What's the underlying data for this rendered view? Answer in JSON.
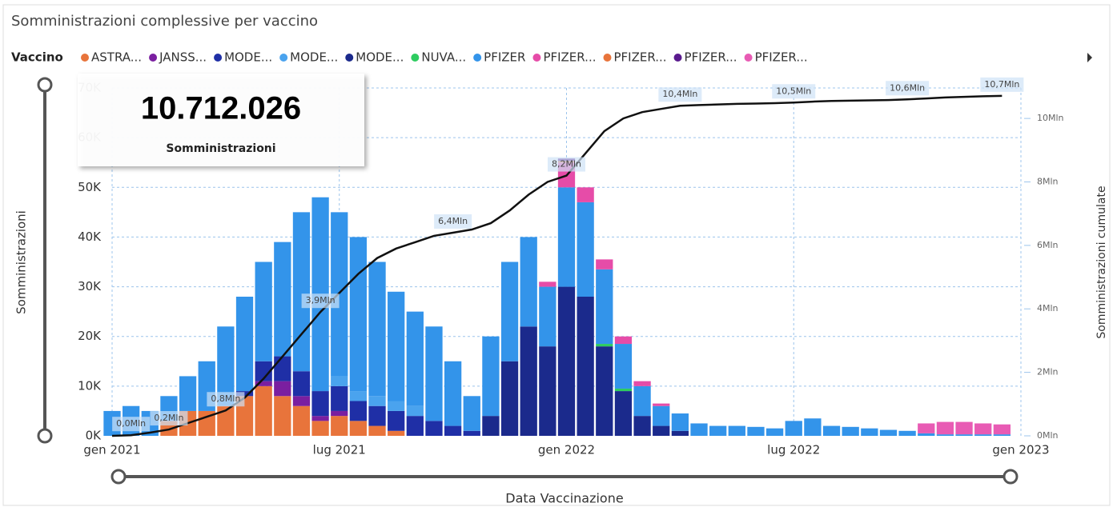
{
  "chart_data": {
    "type": "bar",
    "title": "Somministrazioni complessive per vaccino",
    "legend_title": "Vaccino",
    "card": {
      "value": "10.712.026",
      "label": "Somministrazioni"
    },
    "ylabel": "Somministrazioni",
    "y2label": "Somministrazioni cumulate",
    "xlabel": "Data Vaccinazione",
    "stacked": true,
    "grid": true,
    "x": [
      0,
      0.5,
      1,
      1.5,
      2,
      2.5,
      3,
      3.5,
      4,
      4.5,
      5,
      5.5,
      6,
      6.5,
      7,
      7.5,
      8,
      8.5,
      9,
      9.5,
      10,
      10.5,
      11,
      11.5,
      12,
      12.5,
      13,
      13.5,
      14,
      14.5,
      15,
      15.5,
      16,
      16.5,
      17,
      17.5,
      18,
      18.5,
      19,
      19.5,
      20,
      20.5,
      21,
      21.5,
      22,
      22.5,
      23,
      23.5
    ],
    "xlim": [
      0,
      24
    ],
    "xticks": [
      {
        "value": 0,
        "label": "gen 2021"
      },
      {
        "value": 6,
        "label": "lug 2021"
      },
      {
        "value": 12,
        "label": "gen 2022"
      },
      {
        "value": 18,
        "label": "lug 2022"
      },
      {
        "value": 24,
        "label": "gen 2023"
      }
    ],
    "ylim": [
      0,
      70000
    ],
    "yticks": [
      {
        "value": 0,
        "label": "0K"
      },
      {
        "value": 10000,
        "label": "10K"
      },
      {
        "value": 20000,
        "label": "20K"
      },
      {
        "value": 30000,
        "label": "30K"
      },
      {
        "value": 40000,
        "label": "40K"
      },
      {
        "value": 50000,
        "label": "50K"
      },
      {
        "value": 60000,
        "label": "60K"
      },
      {
        "value": 70000,
        "label": "70K"
      }
    ],
    "y2lim": [
      0,
      10960000
    ],
    "y2ticks": [
      {
        "value": 0,
        "label": "0Mln"
      },
      {
        "value": 2000000,
        "label": "2Mln"
      },
      {
        "value": 4000000,
        "label": "4Mln"
      },
      {
        "value": 6000000,
        "label": "6Mln"
      },
      {
        "value": 8000000,
        "label": "8Mln"
      },
      {
        "value": 10000000,
        "label": "10Mln"
      }
    ],
    "series": [
      {
        "name": "ASTRA...",
        "color": "#e8743b",
        "values": [
          0,
          0,
          0,
          3000,
          5000,
          5000,
          6000,
          8000,
          10000,
          8000,
          6000,
          3000,
          4000,
          3000,
          2000,
          1000,
          0,
          0,
          0,
          0,
          0,
          0,
          0,
          0,
          0,
          0,
          0,
          0,
          0,
          0,
          0,
          0,
          0,
          0,
          0,
          0,
          0,
          0,
          0,
          0,
          0,
          0,
          0,
          0,
          0,
          0,
          0,
          0
        ]
      },
      {
        "name": "JANSS...",
        "color": "#7a1fa0",
        "values": [
          0,
          0,
          0,
          0,
          0,
          0,
          0,
          0,
          1000,
          3000,
          2000,
          1000,
          1000,
          0,
          0,
          0,
          0,
          0,
          0,
          0,
          0,
          0,
          0,
          0,
          0,
          0,
          0,
          0,
          0,
          0,
          0,
          0,
          0,
          0,
          0,
          0,
          0,
          0,
          0,
          0,
          0,
          0,
          0,
          0,
          0,
          0,
          0,
          0
        ]
      },
      {
        "name": "MODE...",
        "color": "#1f2fa6",
        "values": [
          0,
          0,
          0,
          0,
          0,
          0,
          0,
          1000,
          4000,
          5000,
          5000,
          5000,
          5000,
          4000,
          4000,
          4000,
          4000,
          3000,
          2000,
          1000,
          0,
          0,
          0,
          0,
          0,
          0,
          0,
          0,
          0,
          0,
          0,
          0,
          0,
          0,
          0,
          0,
          0,
          0,
          0,
          0,
          0,
          0,
          0,
          0,
          0,
          0,
          0,
          0
        ]
      },
      {
        "name": "MODE...",
        "color": "#4aa3ee",
        "values": [
          0,
          0,
          0,
          0,
          0,
          0,
          0,
          0,
          0,
          0,
          0,
          0,
          2000,
          2000,
          2000,
          2000,
          2000,
          0,
          0,
          0,
          0,
          0,
          0,
          0,
          0,
          0,
          0,
          0,
          0,
          0,
          0,
          0,
          0,
          0,
          0,
          0,
          0,
          0,
          0,
          0,
          0,
          0,
          0,
          0,
          0,
          0,
          0,
          0
        ]
      },
      {
        "name": "MODE...",
        "color": "#1b2a8c",
        "values": [
          0,
          0,
          0,
          0,
          0,
          0,
          0,
          0,
          0,
          0,
          0,
          0,
          0,
          0,
          0,
          0,
          0,
          0,
          0,
          0,
          4000,
          15000,
          22000,
          18000,
          30000,
          28000,
          18000,
          9000,
          4000,
          2000,
          1000,
          0,
          0,
          0,
          0,
          0,
          0,
          0,
          0,
          0,
          0,
          0,
          0,
          0,
          0,
          0,
          0,
          0
        ]
      },
      {
        "name": "NUVA...",
        "color": "#2ecc60",
        "values": [
          0,
          0,
          0,
          0,
          0,
          0,
          0,
          0,
          0,
          0,
          0,
          0,
          0,
          0,
          0,
          0,
          0,
          0,
          0,
          0,
          0,
          0,
          0,
          0,
          0,
          0,
          500,
          500,
          0,
          0,
          0,
          0,
          0,
          0,
          0,
          0,
          0,
          0,
          0,
          0,
          0,
          0,
          0,
          0,
          0,
          0,
          0,
          0
        ]
      },
      {
        "name": "PFIZER",
        "color": "#3394ea",
        "values": [
          5000,
          6000,
          5000,
          5000,
          7000,
          10000,
          16000,
          19000,
          20000,
          23000,
          32000,
          39000,
          33000,
          31000,
          27000,
          22000,
          19000,
          19000,
          13000,
          7000,
          16000,
          20000,
          18000,
          12000,
          20000,
          19000,
          15000,
          9000,
          6000,
          4000,
          3500,
          2500,
          2000,
          2000,
          1800,
          1500,
          3000,
          3500,
          2000,
          1800,
          1500,
          1200,
          1000,
          500,
          300,
          300,
          300,
          300
        ]
      },
      {
        "name": "PFIZER...",
        "color": "#e64ca8",
        "values": [
          0,
          0,
          0,
          0,
          0,
          0,
          0,
          0,
          0,
          0,
          0,
          0,
          0,
          0,
          0,
          0,
          0,
          0,
          0,
          0,
          0,
          0,
          0,
          1000,
          5000,
          3000,
          2000,
          1500,
          1000,
          500,
          0,
          0,
          0,
          0,
          0,
          0,
          0,
          0,
          0,
          0,
          0,
          0,
          0,
          0,
          0,
          0,
          0,
          0
        ]
      },
      {
        "name": "PFIZER...",
        "color": "#e8743b",
        "values": [
          0,
          0,
          0,
          0,
          0,
          0,
          0,
          0,
          0,
          0,
          0,
          0,
          0,
          0,
          0,
          0,
          0,
          0,
          0,
          0,
          0,
          0,
          0,
          0,
          300,
          0,
          0,
          0,
          0,
          0,
          0,
          0,
          0,
          0,
          0,
          0,
          0,
          0,
          0,
          0,
          0,
          0,
          0,
          0,
          0,
          0,
          0,
          0
        ]
      },
      {
        "name": "PFIZER...",
        "color": "#5a1a8e",
        "values": [
          0,
          0,
          0,
          0,
          0,
          0,
          0,
          0,
          0,
          0,
          0,
          0,
          0,
          0,
          0,
          0,
          0,
          0,
          0,
          0,
          0,
          0,
          0,
          0,
          500,
          0,
          0,
          0,
          0,
          0,
          0,
          0,
          0,
          0,
          0,
          0,
          0,
          0,
          0,
          0,
          0,
          0,
          0,
          0,
          0,
          0,
          0,
          0
        ]
      },
      {
        "name": "PFIZER...",
        "color": "#e85bb4",
        "values": [
          0,
          0,
          0,
          0,
          0,
          0,
          0,
          0,
          0,
          0,
          0,
          0,
          0,
          0,
          0,
          0,
          0,
          0,
          0,
          0,
          0,
          0,
          0,
          0,
          0,
          0,
          0,
          0,
          0,
          0,
          0,
          0,
          0,
          0,
          0,
          0,
          0,
          0,
          0,
          0,
          0,
          0,
          0,
          2000,
          2500,
          2500,
          2200,
          2000
        ]
      }
    ],
    "cumulative": {
      "axis": "y2",
      "color": "#111111",
      "values": [
        0,
        20000,
        100000,
        200000,
        400000,
        600000,
        800000,
        1200000,
        1800000,
        2500000,
        3200000,
        3900000,
        4500000,
        5100000,
        5600000,
        5900000,
        6100000,
        6300000,
        6400000,
        6500000,
        6700000,
        7100000,
        7600000,
        8000000,
        8200000,
        8900000,
        9600000,
        10000000,
        10200000,
        10300000,
        10400000,
        10420000,
        10440000,
        10460000,
        10470000,
        10480000,
        10500000,
        10530000,
        10550000,
        10560000,
        10570000,
        10580000,
        10600000,
        10630000,
        10660000,
        10680000,
        10700000,
        10712026
      ],
      "value_labels": [
        null,
        "0,0Mln",
        null,
        "0,2Mln",
        null,
        null,
        "0,8Mln",
        null,
        null,
        null,
        null,
        "3,9Mln",
        null,
        null,
        null,
        null,
        null,
        null,
        "6,4Mln",
        null,
        null,
        null,
        null,
        null,
        "8,2Mln",
        null,
        null,
        null,
        null,
        null,
        "10,4Mln",
        null,
        null,
        null,
        null,
        null,
        "10,5Mln",
        null,
        null,
        null,
        null,
        null,
        "10,6Mln",
        null,
        null,
        null,
        null,
        "10,7Mln"
      ]
    }
  }
}
